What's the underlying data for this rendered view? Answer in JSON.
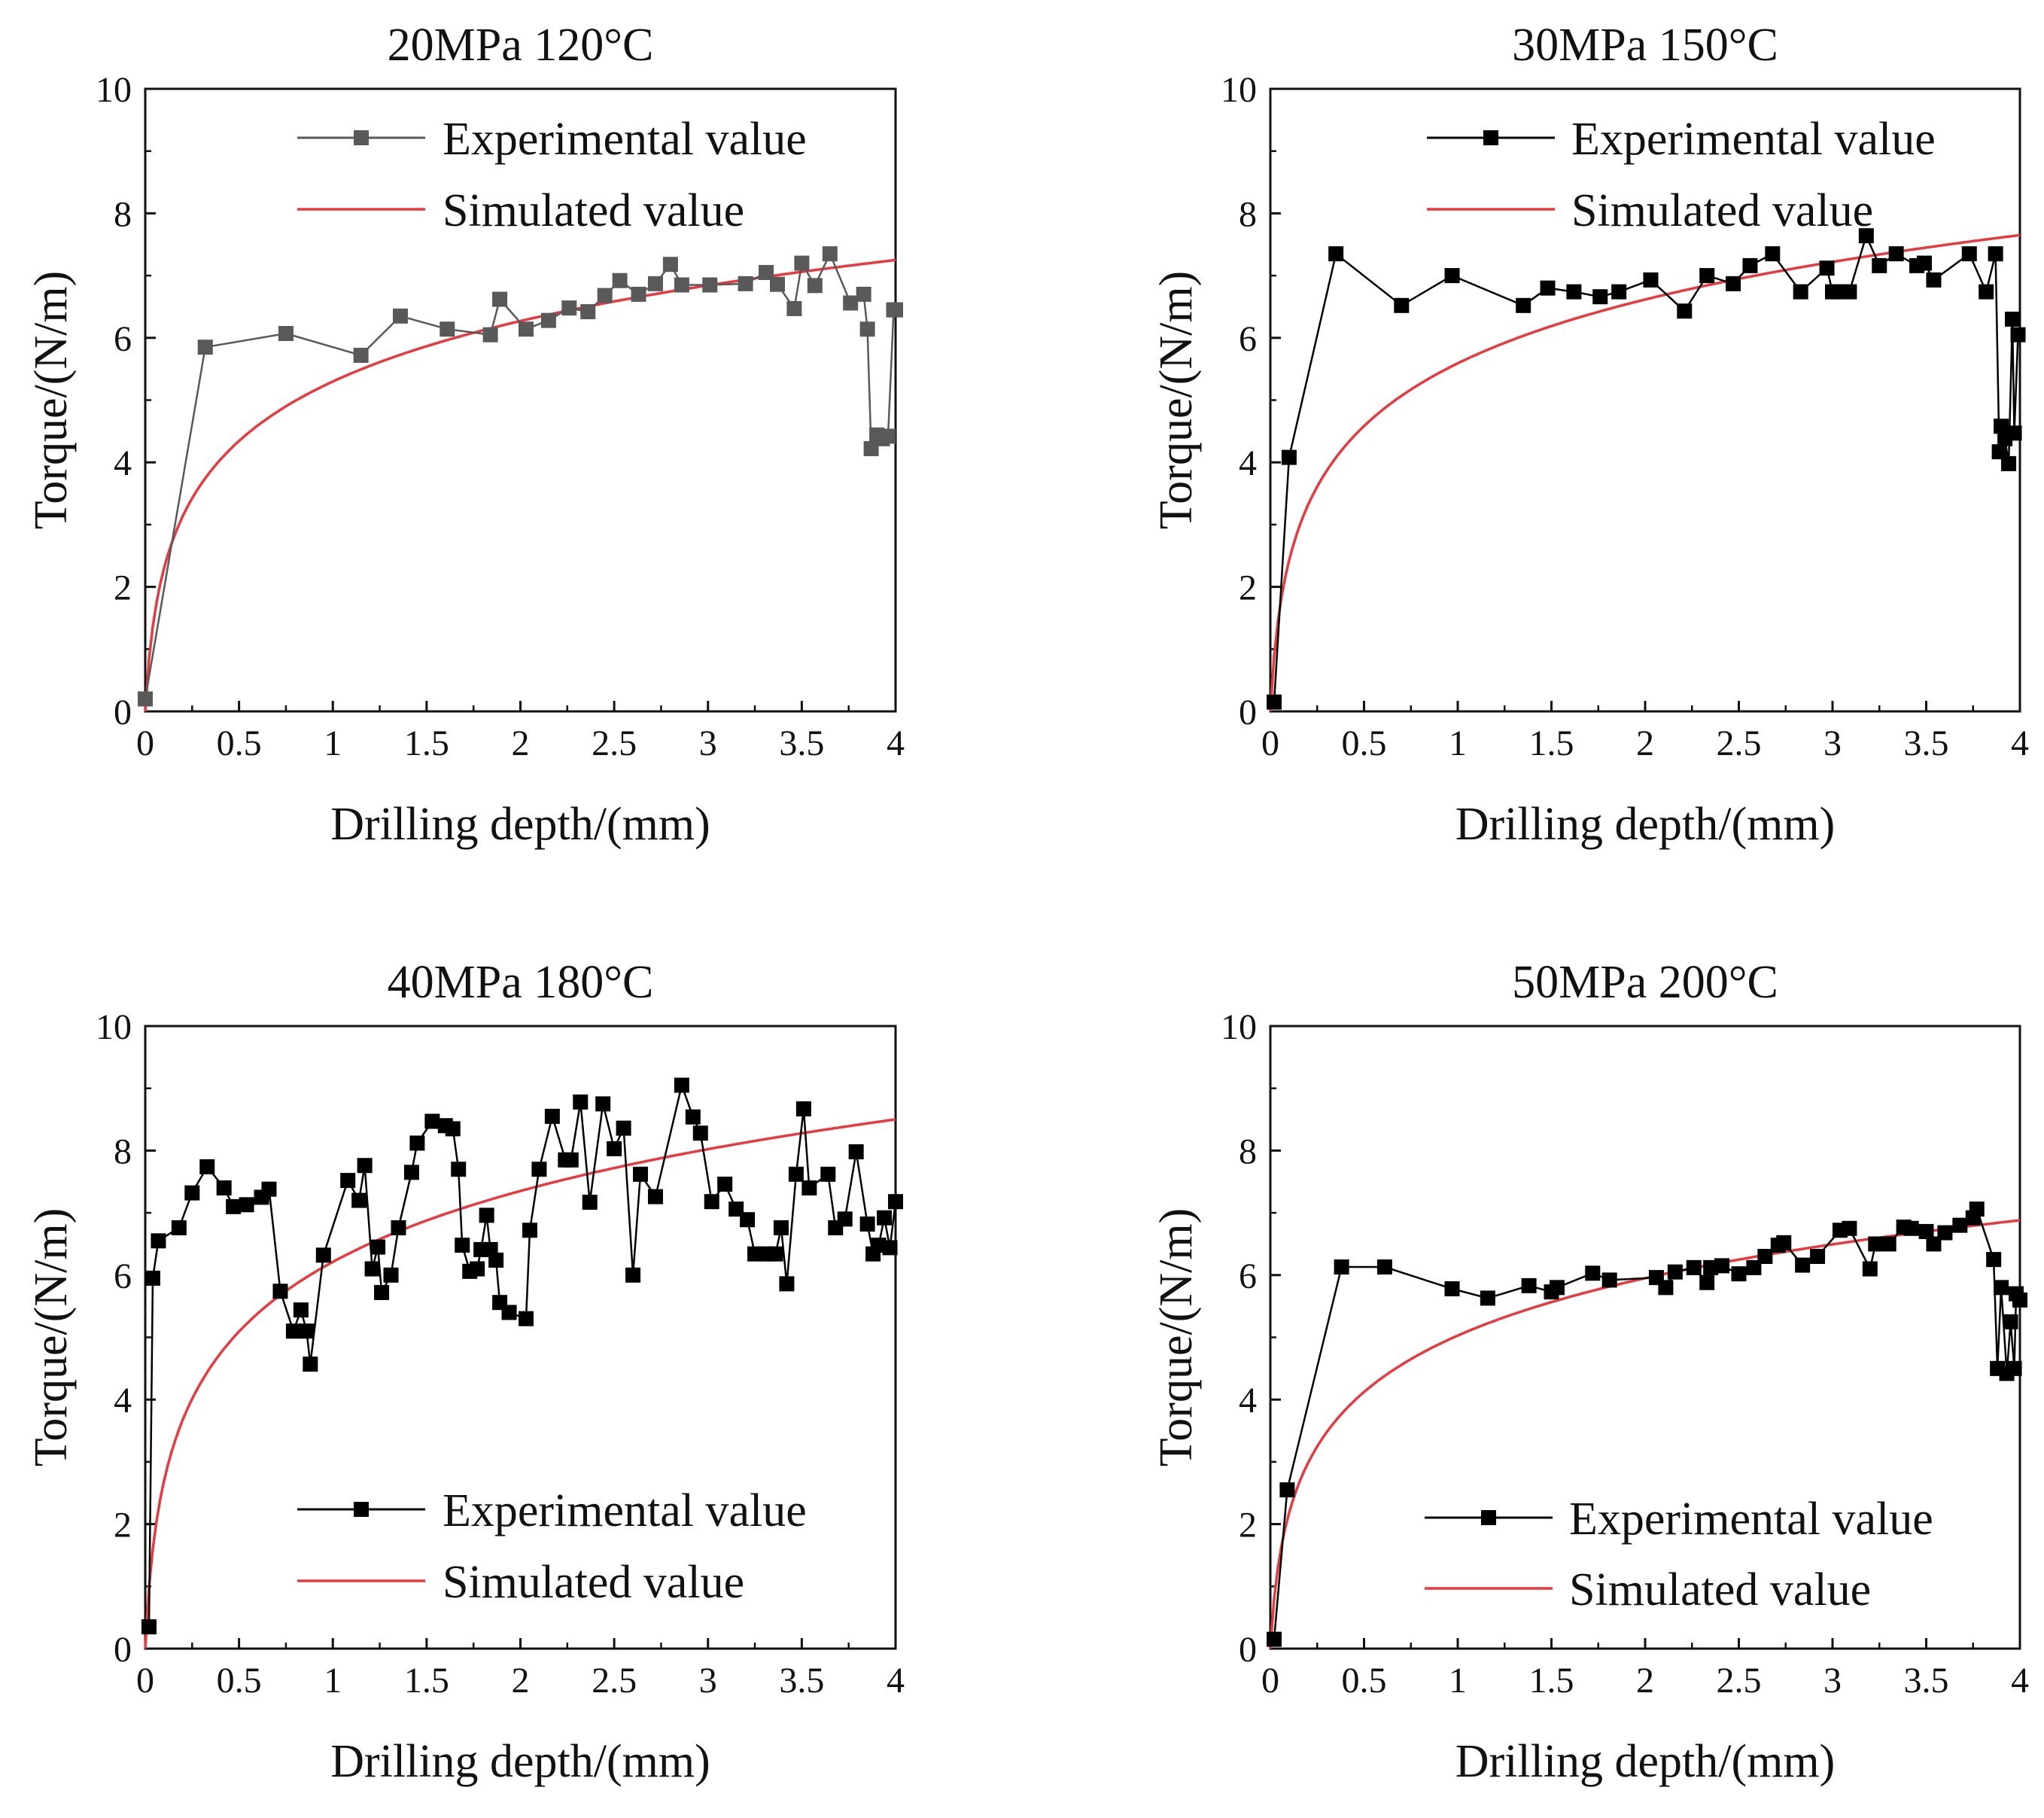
{
  "chart_data": [
    {
      "type": "line",
      "title": "20MPa 120°C",
      "xlabel": "Drilling depth/(mm)",
      "ylabel": "Torque/(N/m)",
      "xlim": [
        0,
        4
      ],
      "ylim": [
        0,
        10
      ],
      "xticks": [
        "0",
        "0.5",
        "1",
        "1.5",
        "2",
        "2.5",
        "3",
        "3.5",
        "4"
      ],
      "yticks": [
        "0",
        "2",
        "4",
        "6",
        "8",
        "10"
      ],
      "legend_position": "top-right",
      "legend": [
        "Experimental value",
        "Simulated value"
      ],
      "colors": {
        "experimental": "#595959",
        "simulated": "#e8393f"
      },
      "simulated_final": 7.25,
      "series": [
        {
          "name": "Experimental value",
          "x": [
            0,
            0.32,
            0.75,
            1.15,
            1.36,
            1.61,
            1.84,
            1.89,
            2.03,
            2.15,
            2.26,
            2.36,
            2.45,
            2.53,
            2.63,
            2.72,
            2.8,
            2.86,
            3.01,
            3.2,
            3.31,
            3.37,
            3.46,
            3.5,
            3.57,
            3.65,
            3.76,
            3.83,
            3.85,
            3.87,
            3.9,
            3.93,
            3.96,
            3.99,
            4.0
          ],
          "y": [
            0.2,
            5.85,
            6.07,
            5.72,
            6.35,
            6.14,
            6.05,
            6.62,
            6.14,
            6.28,
            6.48,
            6.42,
            6.68,
            6.92,
            6.7,
            6.87,
            7.18,
            6.85,
            6.85,
            6.87,
            7.05,
            6.86,
            6.47,
            7.2,
            6.84,
            7.35,
            6.56,
            6.7,
            6.14,
            4.22,
            4.44,
            4.38,
            4.42,
            6.45,
            6.45
          ]
        },
        {
          "name": "Simulated value",
          "type": "line"
        }
      ]
    },
    {
      "type": "line",
      "title": "30MPa 150°C",
      "xlabel": "Drilling depth/(mm)",
      "ylabel": "Torque/(N/m)",
      "xlim": [
        0,
        4
      ],
      "ylim": [
        0,
        10
      ],
      "xticks": [
        "0",
        "0.5",
        "1",
        "1.5",
        "2",
        "2.5",
        "3",
        "3.5",
        "4"
      ],
      "yticks": [
        "0",
        "2",
        "4",
        "6",
        "8",
        "10"
      ],
      "legend_position": "top-right",
      "legend": [
        "Experimental value",
        "Simulated value"
      ],
      "colors": {
        "experimental": "#000000",
        "simulated": "#e8393f"
      },
      "simulated_final": 7.65,
      "series": [
        {
          "name": "Experimental value",
          "x": [
            0.02,
            0.1,
            0.35,
            0.7,
            0.97,
            1.35,
            1.48,
            1.62,
            1.76,
            1.86,
            2.03,
            2.21,
            2.33,
            2.47,
            2.56,
            2.68,
            2.83,
            2.97,
            3.0,
            3.04,
            3.09,
            3.18,
            3.25,
            3.34,
            3.45,
            3.49,
            3.54,
            3.73,
            3.82,
            3.87,
            3.89,
            3.9,
            3.92,
            3.94,
            3.96,
            3.97,
            3.99
          ],
          "y": [
            0.15,
            4.08,
            7.35,
            6.52,
            7.0,
            6.52,
            6.8,
            6.74,
            6.66,
            6.74,
            6.93,
            6.43,
            7.0,
            6.87,
            7.16,
            7.35,
            6.74,
            7.12,
            6.74,
            6.74,
            6.74,
            7.64,
            7.16,
            7.35,
            7.16,
            7.2,
            6.93,
            7.35,
            6.74,
            7.35,
            4.17,
            4.58,
            4.38,
            3.98,
            6.3,
            4.47,
            6.05
          ]
        },
        {
          "name": "Simulated value",
          "type": "line"
        }
      ]
    },
    {
      "type": "line",
      "title": "40MPa 180°C",
      "xlabel": "Drilling depth/(mm)",
      "ylabel": "Torque/(N/m)",
      "xlim": [
        0,
        4
      ],
      "ylim": [
        0,
        10
      ],
      "xticks": [
        "0",
        "0.5",
        "1",
        "1.5",
        "2",
        "2.5",
        "3",
        "3.5",
        "4"
      ],
      "yticks": [
        "0",
        "2",
        "4",
        "6",
        "8",
        "10"
      ],
      "legend_position": "bottom-right",
      "legend": [
        "Experimental value",
        "Simulated value"
      ],
      "colors": {
        "experimental": "#000000",
        "simulated": "#e8393f"
      },
      "simulated_final": 8.5,
      "series": [
        {
          "name": "Experimental value",
          "x": [
            0.02,
            0.04,
            0.07,
            0.18,
            0.25,
            0.33,
            0.42,
            0.47,
            0.54,
            0.62,
            0.66,
            0.72,
            0.79,
            0.83,
            0.86,
            0.88,
            0.95,
            1.08,
            1.14,
            1.17,
            1.21,
            1.24,
            1.26,
            1.31,
            1.35,
            1.42,
            1.45,
            1.53,
            1.6,
            1.64,
            1.67,
            1.69,
            1.73,
            1.77,
            1.79,
            1.82,
            1.84,
            1.87,
            1.89,
            1.94,
            2.03,
            2.05,
            2.1,
            2.17,
            2.24,
            2.27,
            2.32,
            2.37,
            2.44,
            2.5,
            2.55,
            2.6,
            2.64,
            2.72,
            2.86,
            2.92,
            2.96,
            3.02,
            3.09,
            3.15,
            3.21,
            3.25,
            3.31,
            3.36,
            3.39,
            3.42,
            3.47,
            3.51,
            3.54,
            3.64,
            3.68,
            3.73,
            3.79,
            3.85,
            3.88,
            3.91,
            3.94,
            3.97,
            4.0
          ],
          "y": [
            0.35,
            5.95,
            6.55,
            6.76,
            7.32,
            7.74,
            7.4,
            7.1,
            7.13,
            7.25,
            7.38,
            5.74,
            5.1,
            5.44,
            5.1,
            4.57,
            6.32,
            7.52,
            7.2,
            7.76,
            6.1,
            6.45,
            5.72,
            6.0,
            6.76,
            7.65,
            8.12,
            8.47,
            8.4,
            8.35,
            7.7,
            6.48,
            6.06,
            6.1,
            6.41,
            6.96,
            6.41,
            6.24,
            5.56,
            5.4,
            5.3,
            6.72,
            7.7,
            8.55,
            7.85,
            7.85,
            8.78,
            7.17,
            8.75,
            8.03,
            8.36,
            6.0,
            7.62,
            7.26,
            9.05,
            8.54,
            8.28,
            7.18,
            7.46,
            7.06,
            6.89,
            6.34,
            6.34,
            6.34,
            6.76,
            5.86,
            7.62,
            8.67,
            7.4,
            7.62,
            6.76,
            6.9,
            7.98,
            6.82,
            6.34,
            6.48,
            6.92,
            6.44,
            7.18
          ]
        },
        {
          "name": "Simulated value",
          "type": "line"
        }
      ]
    },
    {
      "type": "line",
      "title": "50MPa 200°C",
      "xlabel": "Drilling depth/(mm)",
      "ylabel": "Torque/(N/m)",
      "xlim": [
        0,
        4
      ],
      "ylim": [
        0,
        10
      ],
      "xticks": [
        "0",
        "0.5",
        "1",
        "1.5",
        "2",
        "2.5",
        "3",
        "3.5",
        "4"
      ],
      "yticks": [
        "0",
        "2",
        "4",
        "6",
        "8",
        "10"
      ],
      "legend_position": "bottom-right",
      "legend": [
        "Experimental value",
        "Simulated value"
      ],
      "colors": {
        "experimental": "#000000",
        "simulated": "#e8393f"
      },
      "simulated_final": 6.88,
      "series": [
        {
          "name": "Experimental value",
          "x": [
            0.02,
            0.09,
            0.38,
            0.61,
            0.97,
            1.16,
            1.38,
            1.5,
            1.53,
            1.72,
            1.81,
            2.06,
            2.11,
            2.16,
            2.26,
            2.33,
            2.35,
            2.41,
            2.5,
            2.58,
            2.64,
            2.71,
            2.74,
            2.84,
            2.92,
            3.04,
            3.09,
            3.2,
            3.23,
            3.3,
            3.38,
            3.42,
            3.5,
            3.54,
            3.6,
            3.68,
            3.75,
            3.77,
            3.86,
            3.88,
            3.9,
            3.93,
            3.95,
            3.97,
            3.98,
            4.0
          ],
          "y": [
            0.15,
            2.55,
            6.13,
            6.13,
            5.78,
            5.63,
            5.83,
            5.73,
            5.8,
            6.03,
            5.92,
            5.96,
            5.8,
            6.05,
            6.12,
            5.88,
            6.12,
            6.15,
            6.02,
            6.12,
            6.3,
            6.48,
            6.52,
            6.16,
            6.3,
            6.72,
            6.75,
            6.1,
            6.5,
            6.5,
            6.77,
            6.75,
            6.7,
            6.5,
            6.68,
            6.8,
            6.92,
            7.06,
            6.25,
            4.5,
            5.8,
            4.42,
            5.25,
            4.5,
            5.7,
            5.6
          ]
        },
        {
          "name": "Simulated value",
          "type": "line"
        }
      ]
    }
  ]
}
